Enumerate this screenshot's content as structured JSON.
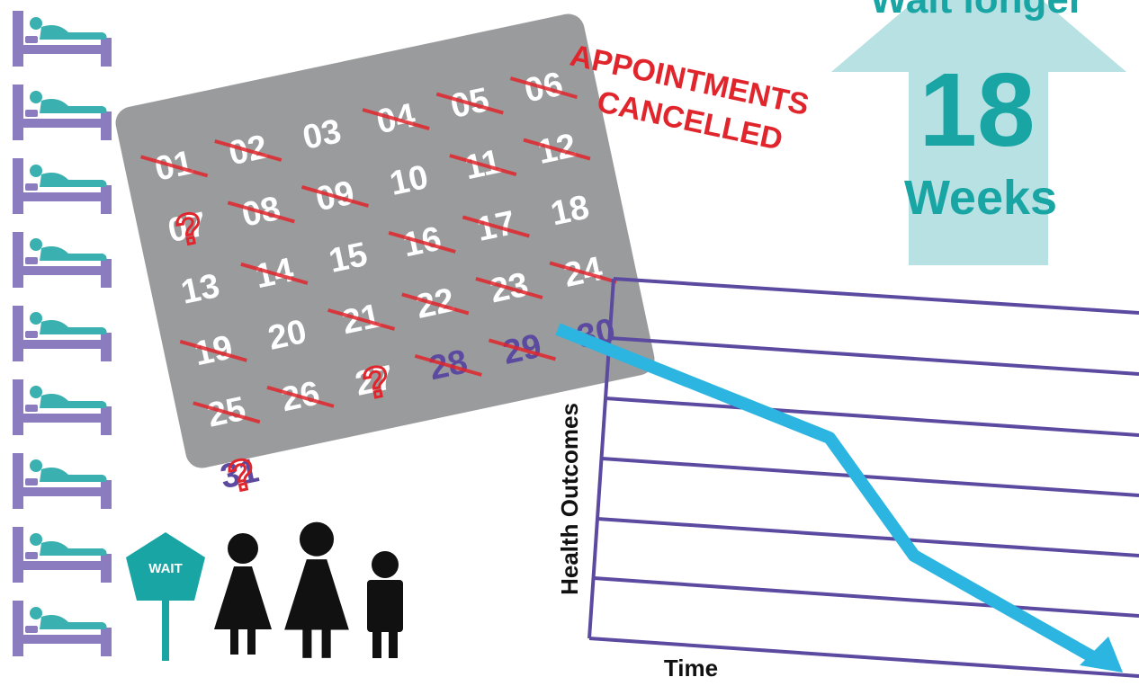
{
  "calendar": {
    "days": [
      {
        "label": "01",
        "crossed": true
      },
      {
        "label": "02",
        "crossed": true
      },
      {
        "label": "03"
      },
      {
        "label": "04",
        "crossed": true
      },
      {
        "label": "05",
        "crossed": true
      },
      {
        "label": "06",
        "crossed": true
      },
      {
        "label": "07",
        "mark": "?"
      },
      {
        "label": "08",
        "crossed": true
      },
      {
        "label": "09",
        "crossed": true
      },
      {
        "label": "10"
      },
      {
        "label": "11",
        "crossed": true
      },
      {
        "label": "12",
        "crossed": true
      },
      {
        "label": "13"
      },
      {
        "label": "14",
        "crossed": true
      },
      {
        "label": "15"
      },
      {
        "label": "16",
        "crossed": true
      },
      {
        "label": "17",
        "crossed": true
      },
      {
        "label": "18"
      },
      {
        "label": "19",
        "crossed": true
      },
      {
        "label": "20"
      },
      {
        "label": "21",
        "crossed": true
      },
      {
        "label": "22",
        "crossed": true
      },
      {
        "label": "23",
        "crossed": true
      },
      {
        "label": "24",
        "crossed": true
      },
      {
        "label": "25",
        "crossed": true
      },
      {
        "label": "26",
        "crossed": true
      },
      {
        "label": "27",
        "mark": "?"
      },
      {
        "label": "28",
        "crossed": true,
        "color": "#5b4aa0"
      },
      {
        "label": "29",
        "crossed": true,
        "color": "#5b4aa0"
      },
      {
        "label": "30",
        "color": "#5b4aa0"
      },
      {
        "label": "31",
        "mark": "?",
        "color": "#5b4aa0"
      }
    ]
  },
  "notice": {
    "line1": "APPOINTMENTS",
    "line2": "CANCELLED"
  },
  "wait_arrow": {
    "heading": "Wait longer",
    "number": "18",
    "unit": "Weeks"
  },
  "sign": {
    "text": "WAIT"
  },
  "outcome_chart": {
    "y_label": "Health Outcomes",
    "x_label": "Time"
  }
}
